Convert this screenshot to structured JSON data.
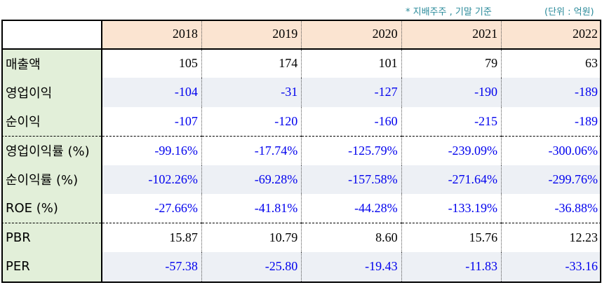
{
  "notes": {
    "basis": "* 지배주주 , 기말 기준",
    "unit": "(단위 : 억원)"
  },
  "table": {
    "corner": "",
    "years": [
      "2018",
      "2019",
      "2020",
      "2021",
      "2022"
    ],
    "rows": [
      {
        "label": "매출액",
        "values": [
          "105",
          "174",
          "101",
          "79",
          "63"
        ],
        "negative": [
          false,
          false,
          false,
          false,
          false
        ]
      },
      {
        "label": "영업이익",
        "values": [
          "-104",
          "-31",
          "-127",
          "-190",
          "-189"
        ],
        "negative": [
          true,
          true,
          true,
          true,
          true
        ]
      },
      {
        "label": "순이익",
        "values": [
          "-107",
          "-120",
          "-160",
          "-215",
          "-189"
        ],
        "negative": [
          true,
          true,
          true,
          true,
          true
        ]
      },
      {
        "label": "영업이익률 (%)",
        "values": [
          "-99.16%",
          "-17.74%",
          "-125.79%",
          "-239.09%",
          "-300.06%"
        ],
        "negative": [
          true,
          true,
          true,
          true,
          true
        ]
      },
      {
        "label": "순이익률 (%)",
        "values": [
          "-102.26%",
          "-69.28%",
          "-157.58%",
          "-271.64%",
          "-299.76%"
        ],
        "negative": [
          true,
          true,
          true,
          true,
          true
        ]
      },
      {
        "label": "ROE (%)",
        "values": [
          "-27.66%",
          "-41.81%",
          "-44.28%",
          "-133.19%",
          "-36.88%"
        ],
        "negative": [
          true,
          true,
          true,
          true,
          true
        ]
      },
      {
        "label": "PBR",
        "values": [
          "15.87",
          "10.79",
          "8.60",
          "15.76",
          "12.23"
        ],
        "negative": [
          false,
          false,
          false,
          false,
          false
        ]
      },
      {
        "label": "PER",
        "values": [
          "-57.38",
          "-25.80",
          "-19.43",
          "-11.83",
          "-33.16"
        ],
        "negative": [
          true,
          true,
          true,
          true,
          true
        ]
      }
    ]
  },
  "colors": {
    "header_bg": "#fbe4d1",
    "label_bg": "#e2efd9",
    "shaded_row_bg": "#edf0f5",
    "negative_text": "#0000ee",
    "note_text": "#2a8a9a"
  }
}
